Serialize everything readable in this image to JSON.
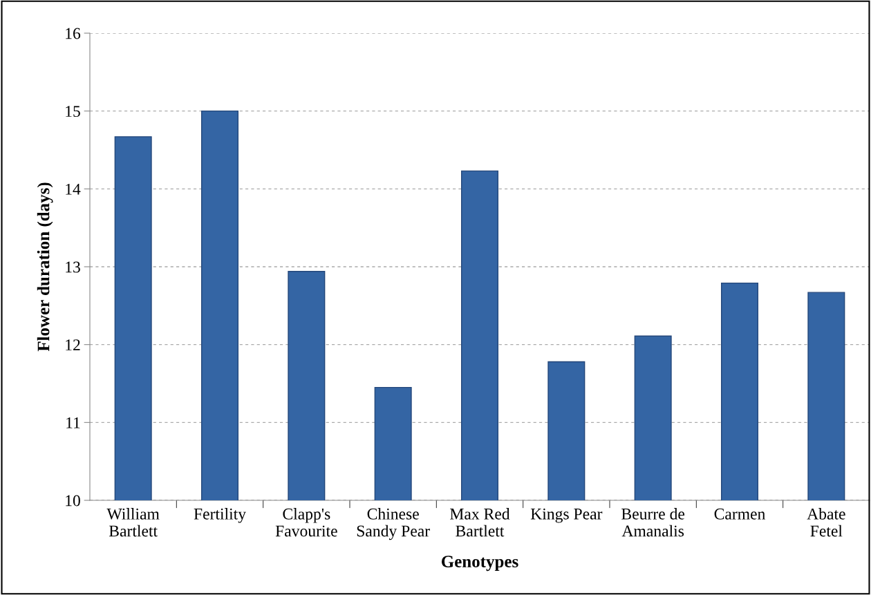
{
  "chart_data": {
    "type": "bar",
    "xlabel": "Genotypes",
    "ylabel": "Flower duration (days)",
    "categories": [
      "William\nBartlett",
      "Fertility",
      "Clapp's\nFavourite",
      "Chinese\nSandy Pear",
      "Max Red\nBartlett",
      "Kings Pear",
      "Beurre de\nAmanalis",
      "Carmen",
      "Abate\nFetel"
    ],
    "values": [
      14.67,
      15.0,
      12.94,
      11.45,
      14.23,
      11.78,
      12.11,
      12.79,
      12.67
    ],
    "color": "#3465a4",
    "ylim": [
      10,
      16
    ],
    "yticks": [
      10,
      11,
      12,
      13,
      14,
      15,
      16
    ],
    "grid": "y"
  }
}
